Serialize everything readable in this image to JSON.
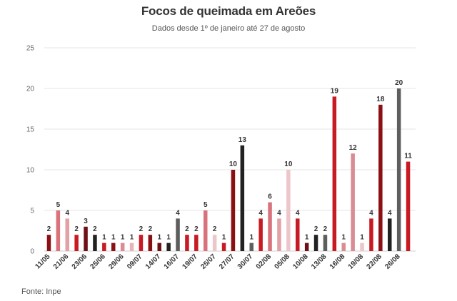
{
  "chart_data": {
    "type": "bar",
    "title": "Focos de queimada em Areões",
    "subtitle": "Dados desde 1º de janeiro até 27 de agosto",
    "source": "Fonte: Inpe",
    "ylim": [
      0,
      25
    ],
    "yticks": [
      0,
      5,
      10,
      15,
      20,
      25
    ],
    "grid": true,
    "xtick_labels": [
      "11/05",
      "21/06",
      "23/06",
      "25/06",
      "29/06",
      "09/07",
      "14/07",
      "16/07",
      "19/07",
      "25/07",
      "27/07",
      "30/07",
      "02/08",
      "05/08",
      "10/08",
      "13/08",
      "16/08",
      "19/08",
      "22/08",
      "26/08"
    ],
    "values": [
      2,
      5,
      4,
      2,
      3,
      2,
      1,
      1,
      1,
      1,
      2,
      2,
      1,
      1,
      4,
      2,
      2,
      5,
      2,
      1,
      10,
      13,
      1,
      4,
      6,
      4,
      10,
      4,
      1,
      2,
      2,
      19,
      1,
      12,
      1,
      4,
      18,
      4,
      20,
      11
    ],
    "colors": [
      "#8b1014",
      "#d9737b",
      "#e3a1a6",
      "#c71a22",
      "#6e1015",
      "#222222",
      "#c71a22",
      "#8b1014",
      "#d98c93",
      "#e7b5b9",
      "#c71a22",
      "#8b1014",
      "#6e1015",
      "#222222",
      "#5e5e5e",
      "#c71a22",
      "#c71a22",
      "#d9737b",
      "#ecc6c8",
      "#c71a22",
      "#8b1014",
      "#222222",
      "#5e5e5e",
      "#c71a22",
      "#d9737b",
      "#e3a1a6",
      "#ecc6c8",
      "#c71a22",
      "#6e1015",
      "#222222",
      "#5e5e5e",
      "#c71a22",
      "#d98c93",
      "#d98c93",
      "#ecc6c8",
      "#c71a22",
      "#8b1014",
      "#222222",
      "#5e5e5e",
      "#c71a22"
    ]
  }
}
